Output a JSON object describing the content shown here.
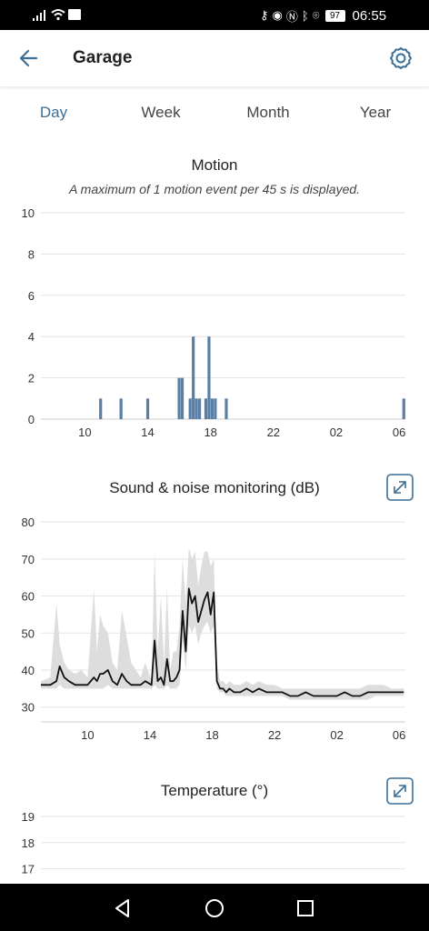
{
  "status_bar": {
    "time": "06:55",
    "battery": "97",
    "icons": [
      "signal-icon",
      "wifi-icon",
      "sim-icon",
      "key-icon",
      "eye-icon",
      "nfc-icon",
      "bluetooth-icon",
      "location-icon",
      "battery-icon"
    ]
  },
  "header": {
    "title": "Garage",
    "back_icon": "arrow-left-icon",
    "settings_icon": "gear-icon",
    "accent": "#3b6f97"
  },
  "tabs": [
    {
      "label": "Day",
      "active": true
    },
    {
      "label": "Week",
      "active": false
    },
    {
      "label": "Month",
      "active": false
    },
    {
      "label": "Year",
      "active": false
    }
  ],
  "motion": {
    "title": "Motion",
    "subtitle": "A maximum of 1 motion event per 45 s is displayed."
  },
  "sound": {
    "title": "Sound & noise monitoring (dB)",
    "expand_icon": "expand-icon"
  },
  "temperature": {
    "title": "Temperature (°)",
    "expand_icon": "expand-icon"
  },
  "chart_data": [
    {
      "type": "bar",
      "title": "Motion",
      "subtitle": "A maximum of 1 motion event per 45 s is displayed.",
      "x_unit": "hour",
      "x_ticks": [
        "10",
        "14",
        "18",
        "22",
        "02",
        "06"
      ],
      "x_tick_hours": [
        10,
        14,
        18,
        22,
        26,
        30
      ],
      "xlim": [
        7.2,
        30.4
      ],
      "ylim": [
        0,
        10
      ],
      "y_ticks": [
        0,
        2,
        4,
        6,
        8,
        10
      ],
      "grid": true,
      "color": "#5a7fa6",
      "bars": [
        {
          "hour": 11.0,
          "value": 1
        },
        {
          "hour": 12.3,
          "value": 1
        },
        {
          "hour": 14.0,
          "value": 1
        },
        {
          "hour": 16.0,
          "value": 2
        },
        {
          "hour": 16.2,
          "value": 2
        },
        {
          "hour": 16.7,
          "value": 1
        },
        {
          "hour": 16.9,
          "value": 4
        },
        {
          "hour": 17.1,
          "value": 1
        },
        {
          "hour": 17.3,
          "value": 1
        },
        {
          "hour": 17.7,
          "value": 1
        },
        {
          "hour": 17.9,
          "value": 4
        },
        {
          "hour": 18.1,
          "value": 1
        },
        {
          "hour": 18.3,
          "value": 1
        },
        {
          "hour": 19.0,
          "value": 1
        },
        {
          "hour": 30.3,
          "value": 1
        }
      ]
    },
    {
      "type": "line",
      "title": "Sound & noise monitoring (dB)",
      "x_unit": "hour",
      "x_ticks": [
        "10",
        "14",
        "18",
        "22",
        "02",
        "06"
      ],
      "x_tick_hours": [
        10,
        14,
        18,
        22,
        26,
        30
      ],
      "xlim": [
        7.0,
        30.4
      ],
      "ylim": [
        26,
        82
      ],
      "y_ticks": [
        30,
        40,
        50,
        60,
        70,
        80
      ],
      "grid": true,
      "line_color": "#111111",
      "band_color": "#dddddd",
      "series": [
        {
          "x": [
            7.0,
            7.6,
            8.0,
            8.2,
            8.5,
            8.8,
            9.2,
            9.6,
            10.0,
            10.4,
            10.6,
            10.8,
            11.0,
            11.3,
            11.6,
            11.9,
            12.2,
            12.5,
            12.8,
            13.1,
            13.4,
            13.7,
            14.1,
            14.3,
            14.5,
            14.7,
            14.9,
            15.1,
            15.3,
            15.5,
            15.7,
            15.9,
            16.1,
            16.3,
            16.5,
            16.7,
            16.9,
            17.1,
            17.3,
            17.5,
            17.7,
            17.9,
            18.1,
            18.3,
            18.5,
            18.7,
            18.9,
            19.1,
            19.4,
            19.8,
            20.2,
            20.6,
            21.0,
            21.5,
            22.0,
            22.5,
            23.0,
            23.5,
            24.0,
            24.5,
            25.0,
            25.5,
            26.0,
            26.5,
            27.0,
            27.5,
            28.0,
            28.5,
            29.0,
            29.5,
            30.0,
            30.3
          ],
          "y": [
            36,
            36,
            37,
            41,
            38,
            37,
            36,
            36,
            36,
            38,
            37,
            39,
            39,
            40,
            37,
            36,
            39,
            37,
            36,
            36,
            36,
            37,
            36,
            48,
            37,
            38,
            36,
            43,
            37,
            37,
            38,
            40,
            56,
            45,
            62,
            58,
            60,
            53,
            56,
            59,
            61,
            55,
            61,
            37,
            35,
            35,
            34,
            35,
            34,
            34,
            35,
            34,
            35,
            34,
            34,
            34,
            33,
            33,
            34,
            33,
            33,
            33,
            33,
            34,
            33,
            33,
            34,
            34,
            34,
            34,
            34,
            34
          ]
        },
        {
          "name_band": true,
          "x": [
            7.0,
            7.6,
            8.0,
            8.2,
            8.5,
            8.8,
            9.2,
            9.6,
            10.0,
            10.4,
            10.6,
            10.8,
            11.0,
            11.3,
            11.6,
            11.9,
            12.2,
            12.5,
            12.8,
            13.1,
            13.4,
            13.7,
            14.1,
            14.3,
            14.5,
            14.7,
            14.9,
            15.1,
            15.3,
            15.5,
            15.7,
            15.9,
            16.1,
            16.3,
            16.5,
            16.7,
            16.9,
            17.1,
            17.3,
            17.5,
            17.7,
            17.9,
            18.1,
            18.3,
            18.5,
            18.7,
            18.9,
            19.1,
            19.4,
            19.8,
            20.2,
            20.6,
            21.0,
            21.5,
            22.0,
            22.5,
            23.0,
            23.5,
            24.0,
            24.5,
            25.0,
            25.5,
            26.0,
            26.5,
            27.0,
            27.5,
            28.0,
            28.5,
            29.0,
            29.5,
            30.0,
            30.3
          ],
          "low": [
            35,
            35,
            35,
            36,
            35,
            35,
            35,
            35,
            35,
            35,
            35,
            35,
            35,
            36,
            35,
            35,
            35,
            35,
            35,
            35,
            35,
            35,
            35,
            36,
            35,
            35,
            35,
            36,
            35,
            35,
            35,
            36,
            48,
            40,
            52,
            50,
            52,
            47,
            50,
            52,
            53,
            50,
            52,
            35,
            34,
            34,
            33,
            33,
            33,
            33,
            33,
            33,
            33,
            33,
            33,
            33,
            32,
            32,
            32,
            32,
            32,
            32,
            32,
            32,
            32,
            32,
            32,
            33,
            33,
            33,
            33,
            33
          ],
          "high": [
            37,
            38,
            58,
            47,
            42,
            40,
            39,
            40,
            38,
            62,
            45,
            55,
            52,
            50,
            42,
            40,
            56,
            49,
            42,
            40,
            38,
            42,
            37,
            72,
            45,
            60,
            42,
            62,
            40,
            45,
            45,
            52,
            70,
            58,
            73,
            70,
            72,
            63,
            68,
            72,
            72,
            68,
            70,
            42,
            37,
            37,
            36,
            37,
            36,
            36,
            37,
            36,
            37,
            36,
            36,
            35,
            35,
            35,
            35,
            35,
            35,
            35,
            35,
            35,
            35,
            35,
            36,
            36,
            36,
            35,
            35,
            35
          ]
        }
      ]
    },
    {
      "type": "line",
      "title": "Temperature (°)",
      "y_ticks": [
        17,
        18,
        19
      ],
      "ylim": [
        16.5,
        19
      ],
      "grid": true
    }
  ]
}
